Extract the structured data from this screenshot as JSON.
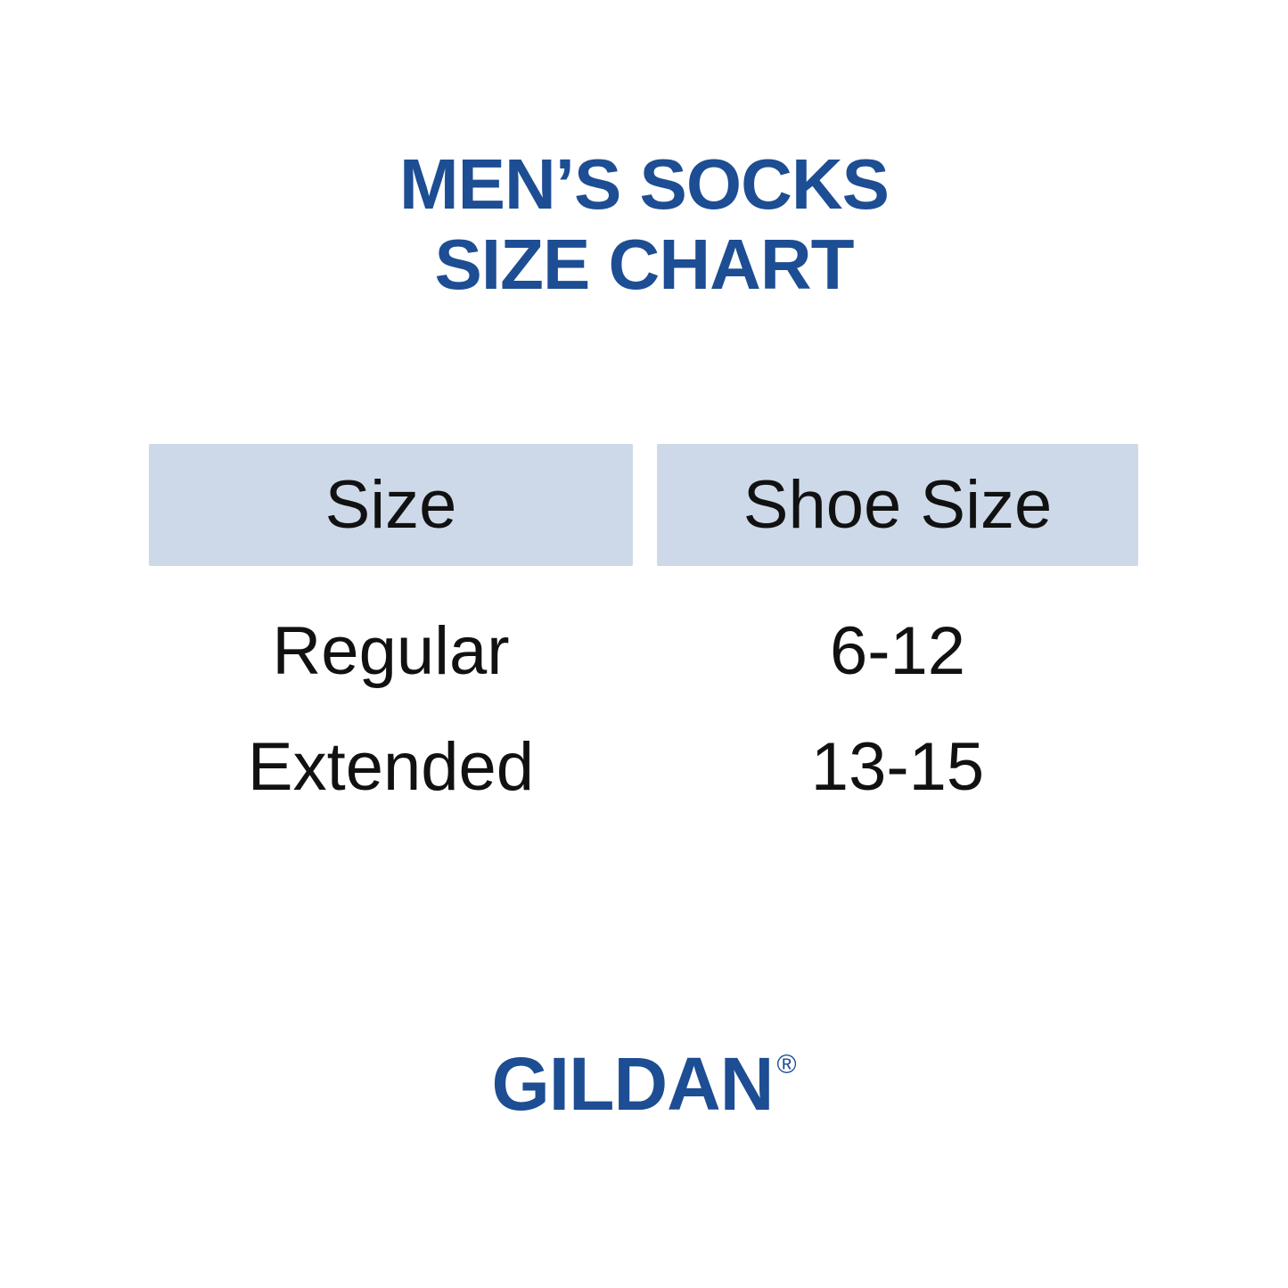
{
  "title": {
    "line1": "MEN’S SOCKS",
    "line2": "SIZE CHART"
  },
  "table": {
    "columns": [
      "Size",
      "Shoe Size"
    ],
    "rows": [
      {
        "size": "Regular",
        "shoe_size": "6-12"
      },
      {
        "size": "Extended",
        "shoe_size": "13-15"
      }
    ]
  },
  "brand": {
    "name": "GILDAN",
    "registered_mark": "®"
  },
  "colors": {
    "brand_blue": "#1d4d93",
    "header_cell_bg": "#cdd9e8",
    "body_text": "#111111",
    "background": "#ffffff"
  }
}
